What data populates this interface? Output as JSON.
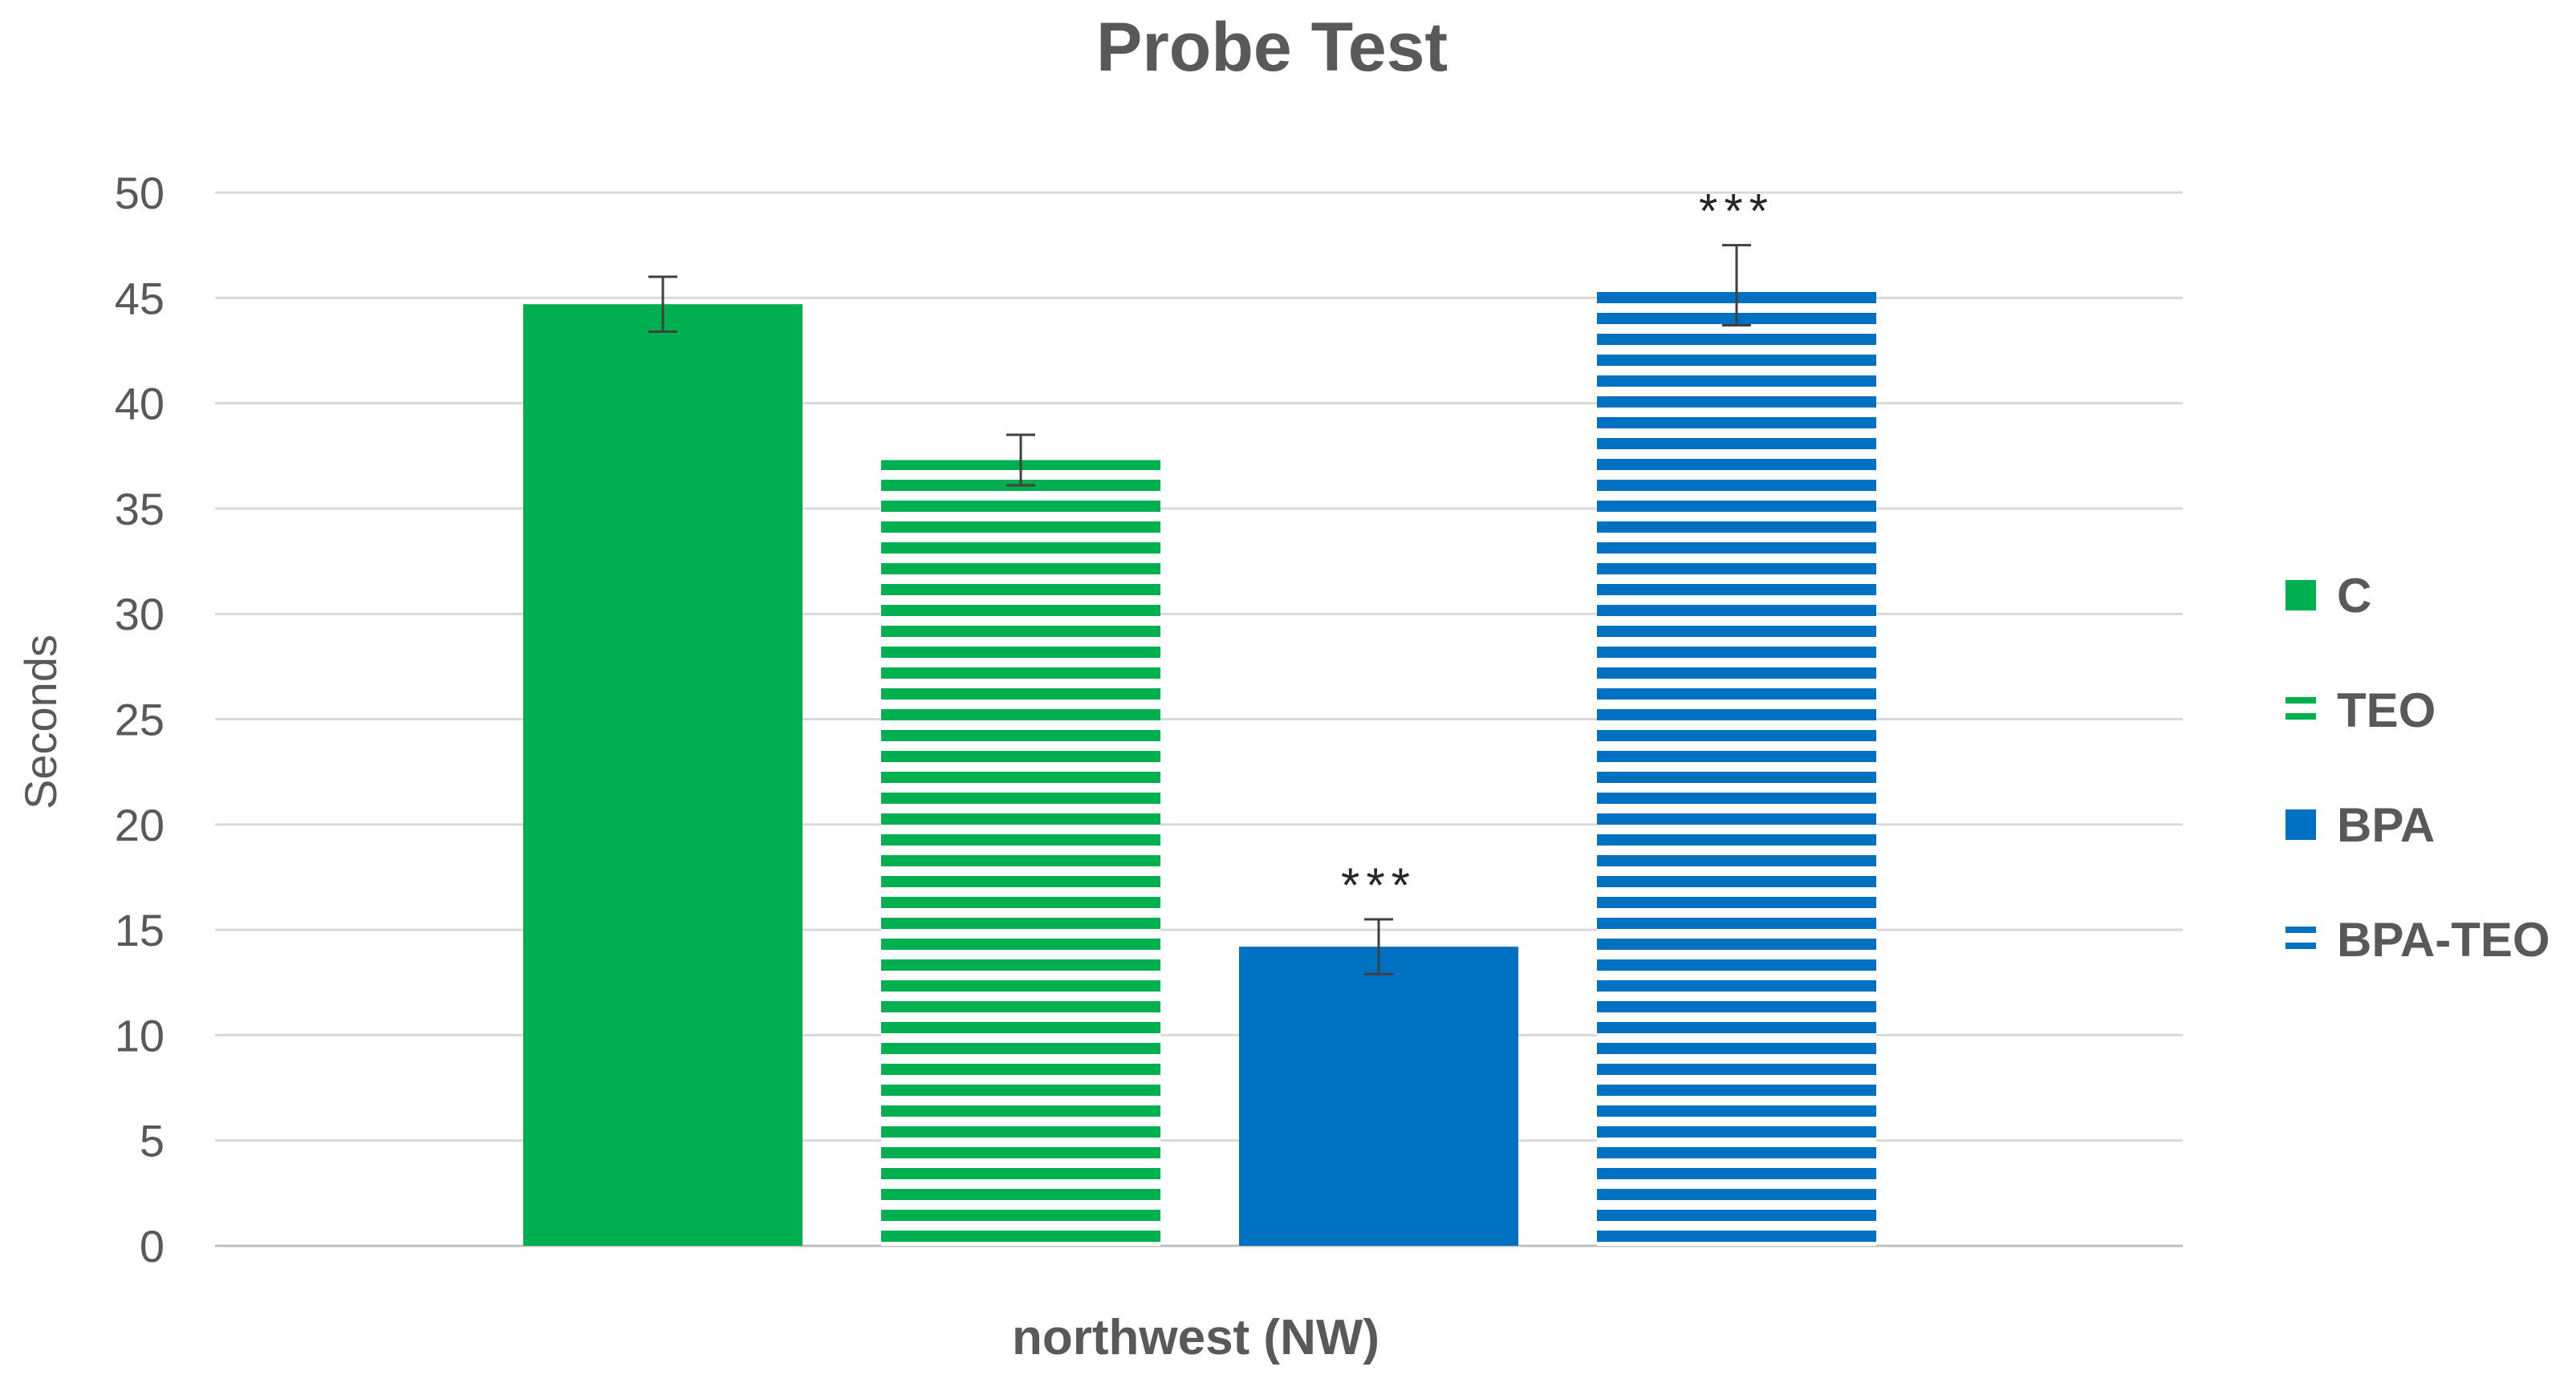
{
  "chart_data": {
    "type": "bar",
    "title": "Probe Test",
    "xlabel": "northwest (NW)",
    "ylabel": "Seconds",
    "ylim": [
      0,
      50
    ],
    "yticks": [
      0,
      5,
      10,
      15,
      20,
      25,
      30,
      35,
      40,
      45,
      50
    ],
    "grid": true,
    "legend_position": "right",
    "categories": [
      "northwest (NW)"
    ],
    "series": [
      {
        "name": "C",
        "values": [
          44.7
        ],
        "error": [
          1.3
        ],
        "pattern": "solid",
        "color": "#00b050",
        "annotation": ""
      },
      {
        "name": "TEO",
        "values": [
          37.3
        ],
        "error": [
          1.2
        ],
        "pattern": "striped",
        "color": "#00b050",
        "annotation": ""
      },
      {
        "name": "BPA",
        "values": [
          14.2
        ],
        "error": [
          1.3
        ],
        "pattern": "solid",
        "color": "#0070c0",
        "annotation": "***"
      },
      {
        "name": "BPA-TEO",
        "values": [
          45.6
        ],
        "error": [
          1.9
        ],
        "pattern": "striped",
        "color": "#0070c0",
        "annotation": "***"
      }
    ]
  }
}
